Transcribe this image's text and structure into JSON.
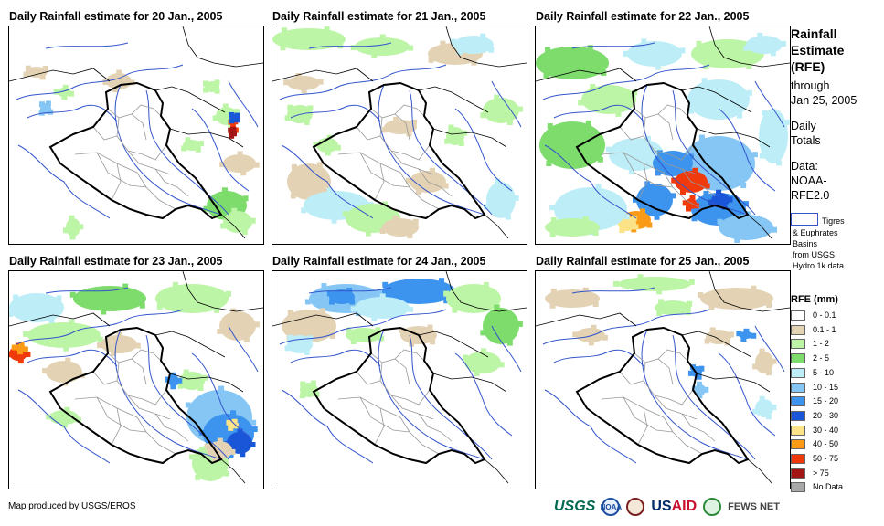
{
  "panels": [
    {
      "title": "Daily Rainfall estimate for 20 Jan., 2005",
      "day": 20
    },
    {
      "title": "Daily Rainfall estimate for 21 Jan., 2005",
      "day": 21
    },
    {
      "title": "Daily Rainfall estimate for 22 Jan., 2005",
      "day": 22
    },
    {
      "title": "Daily Rainfall estimate for 23 Jan., 2005",
      "day": 23
    },
    {
      "title": "Daily Rainfall estimate for 24 Jan., 2005",
      "day": 24
    },
    {
      "title": "Daily Rainfall estimate for 25 Jan., 2005",
      "day": 25
    }
  ],
  "legend": {
    "title_lines": [
      "Rainfall",
      "Estimate",
      "(RFE)"
    ],
    "through_lines": [
      "through",
      "Jan 25, 2005"
    ],
    "daily_lines": [
      "Daily",
      "Totals"
    ],
    "data_lines": [
      "Data:",
      "NOAA-",
      "RFE2.0"
    ],
    "basin_lines": [
      "Tigres",
      "& Euphrates",
      "Basins",
      "from USGS",
      "Hydro 1k data"
    ],
    "rfe_title": "RFE (mm)",
    "classes": [
      {
        "label": "0 - 0.1",
        "color": "#ffffff"
      },
      {
        "label": "0.1 - 1",
        "color": "#e3d3b4"
      },
      {
        "label": "1 - 2",
        "color": "#bdf5a6"
      },
      {
        "label": "2 - 5",
        "color": "#7ddc6c"
      },
      {
        "label": "5 - 10",
        "color": "#bdeef8"
      },
      {
        "label": "10 - 15",
        "color": "#85c6f5"
      },
      {
        "label": "15 - 20",
        "color": "#3d94ee"
      },
      {
        "label": "20 - 30",
        "color": "#1a57d8"
      },
      {
        "label": "30 - 40",
        "color": "#fde387"
      },
      {
        "label": "40 - 50",
        "color": "#fa9b17"
      },
      {
        "label": "50 - 75",
        "color": "#f03a0c"
      },
      {
        "label": "> 75",
        "color": "#a31515"
      },
      {
        "label": "No Data",
        "color": "#a8a8a8"
      }
    ]
  },
  "footer": {
    "credit": "Map produced by USGS/EROS",
    "logos": {
      "usgs": "USGS",
      "noaa": "NOAA",
      "usaid_us": "US",
      "usaid_aid": "AID",
      "fews": "FEWS NET"
    }
  }
}
